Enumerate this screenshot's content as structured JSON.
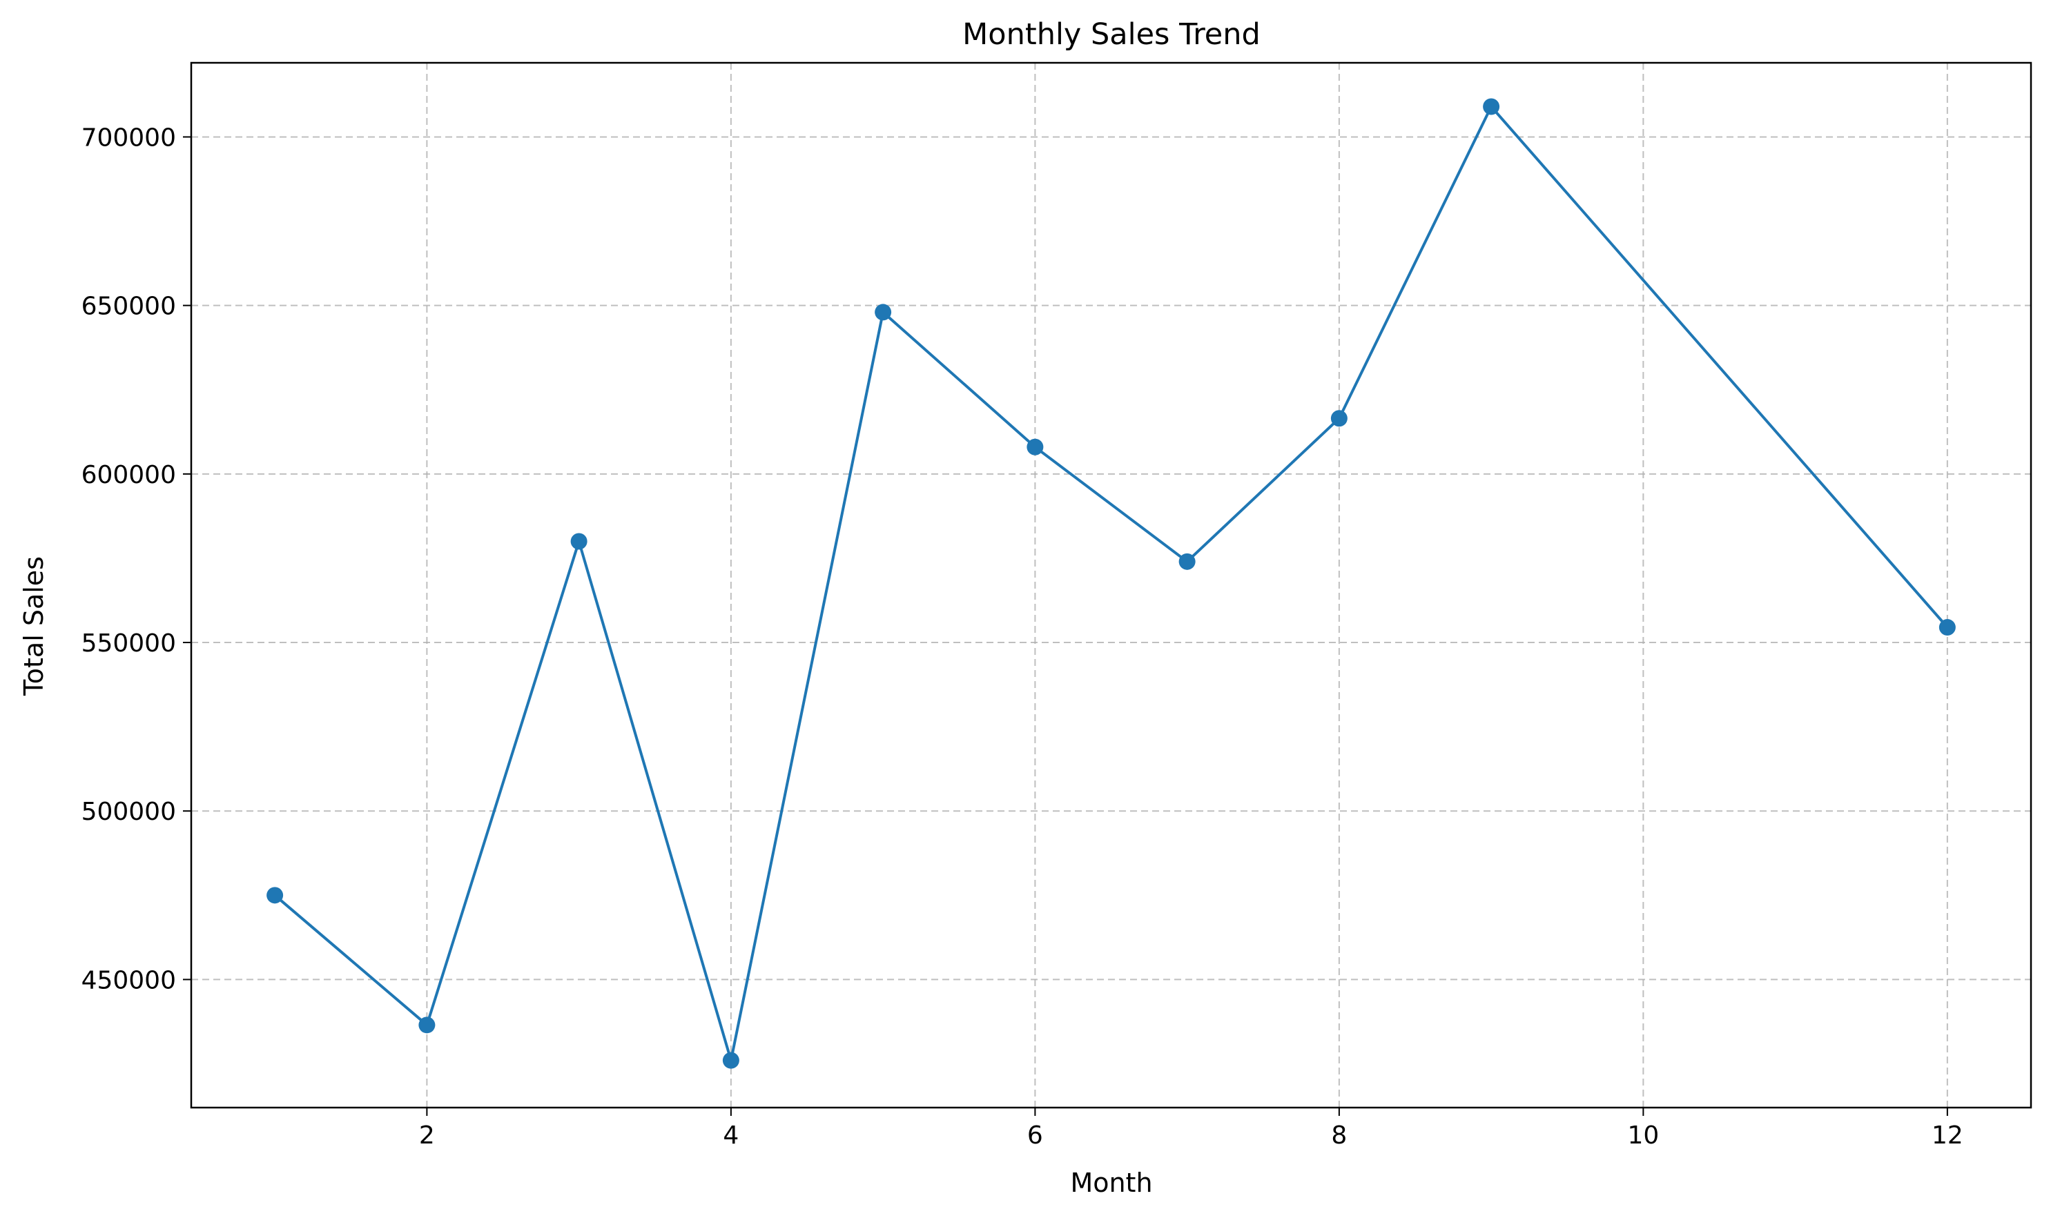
{
  "chart_data": {
    "type": "line",
    "title": "Monthly Sales Trend",
    "xlabel": "Month",
    "ylabel": "Total Sales",
    "xlim": [
      0.45,
      12.55
    ],
    "ylim": [
      412000,
      722000
    ],
    "xticks": [
      2,
      4,
      6,
      8,
      10,
      12
    ],
    "yticks": [
      450000,
      500000,
      550000,
      600000,
      650000,
      700000
    ],
    "grid": true,
    "legend": "none",
    "series": [
      {
        "color": "#1f77b4",
        "marker": "circle",
        "x": [
          1,
          2,
          3,
          4,
          5,
          6,
          7,
          8,
          9,
          12
        ],
        "y": [
          475000,
          436500,
          580000,
          426000,
          648000,
          608000,
          574000,
          616500,
          709000,
          554500
        ]
      }
    ]
  }
}
